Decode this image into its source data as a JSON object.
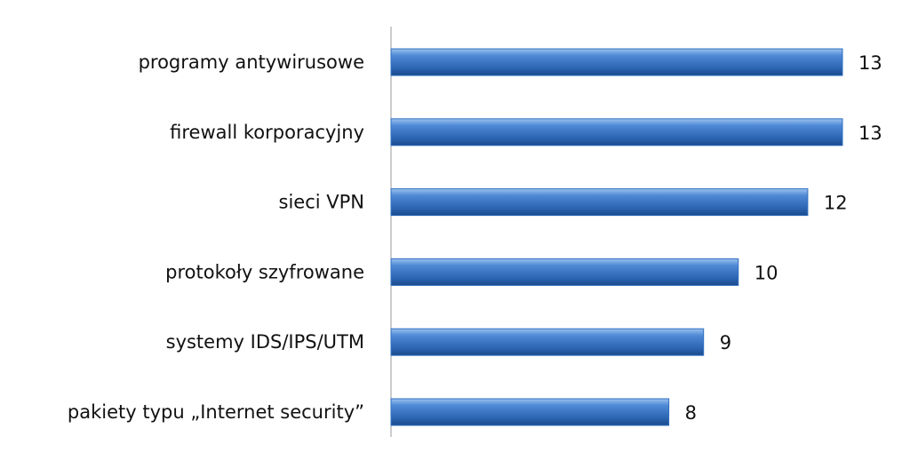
{
  "chart_data": {
    "type": "hbar",
    "categories": [
      "programy antywirusowe",
      "firewall korporacyjny",
      "sieci VPN",
      "protokoły szyfrowane",
      "systemy IDS/IPS/UTM",
      "pakiety typu „Internet security”"
    ],
    "values": [
      13,
      13,
      12,
      10,
      9,
      8
    ],
    "color": "#2f6fc0"
  }
}
